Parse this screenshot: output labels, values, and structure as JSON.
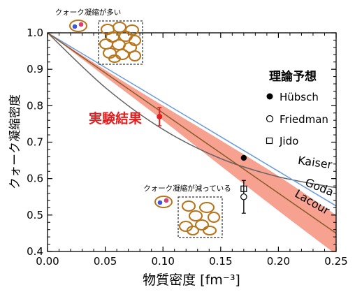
{
  "chart_data": {
    "type": "line",
    "xlabel": "物質密度 [fm⁻³]",
    "ylabel": "クォーク凝縮密度",
    "xlim": [
      0,
      0.25
    ],
    "ylim": [
      0.4,
      1.0
    ],
    "x_ticks": [
      "0.00",
      "0.05",
      "0.10",
      "0.15",
      "0.20",
      "0.25"
    ],
    "y_ticks": [
      "0.4",
      "0.5",
      "0.6",
      "0.7",
      "0.8",
      "0.9",
      "1.0"
    ],
    "grid": false,
    "legend_title": "理論予想",
    "legend_position": "right",
    "legend": [
      {
        "marker": "filled-circle",
        "label": "Hübsch"
      },
      {
        "marker": "open-circle",
        "label": "Friedman"
      },
      {
        "marker": "open-square",
        "label": "Jido"
      }
    ],
    "curves": [
      {
        "name": "Kaiser",
        "color": "#666666",
        "x": [
          0,
          0.05,
          0.1,
          0.15,
          0.2,
          0.25
        ],
        "y": [
          1.0,
          0.85,
          0.735,
          0.655,
          0.605,
          0.575
        ]
      },
      {
        "name": "Goda",
        "color": "#6a9be0",
        "x": [
          0,
          0.05,
          0.1,
          0.15,
          0.2,
          0.25
        ],
        "y": [
          1.0,
          0.905,
          0.81,
          0.715,
          0.62,
          0.525
        ]
      },
      {
        "name": "Lacour",
        "color": "#8a5a2a",
        "x": [
          0,
          0.05,
          0.1,
          0.15,
          0.2,
          0.25
        ],
        "y": [
          1.0,
          0.89,
          0.78,
          0.67,
          0.56,
          0.45
        ]
      }
    ],
    "band": {
      "color": "#f7a190",
      "x": [
        0,
        0.05,
        0.1,
        0.15,
        0.2,
        0.25
      ],
      "upper": [
        1.0,
        0.898,
        0.8,
        0.705,
        0.607,
        0.5
      ],
      "lower": [
        1.0,
        0.88,
        0.76,
        0.635,
        0.512,
        0.392
      ]
    },
    "experiment": {
      "label": "実験結果",
      "color": "#e02020",
      "x": 0.097,
      "y": 0.77,
      "err": 0.025
    },
    "theory_points": [
      {
        "name": "Hübsch",
        "marker": "filled-circle",
        "x": 0.17,
        "y": 0.657
      },
      {
        "name": "Jido",
        "marker": "open-square",
        "x": 0.17,
        "y": 0.572
      },
      {
        "name": "Friedman",
        "marker": "open-circle",
        "x": 0.17,
        "y": 0.55,
        "err_low": 0.045,
        "err_high": 0.045
      }
    ],
    "annotations": {
      "top": "クォーク凝縮が多い",
      "bottom": "クォーク凝縮が減っている"
    }
  }
}
